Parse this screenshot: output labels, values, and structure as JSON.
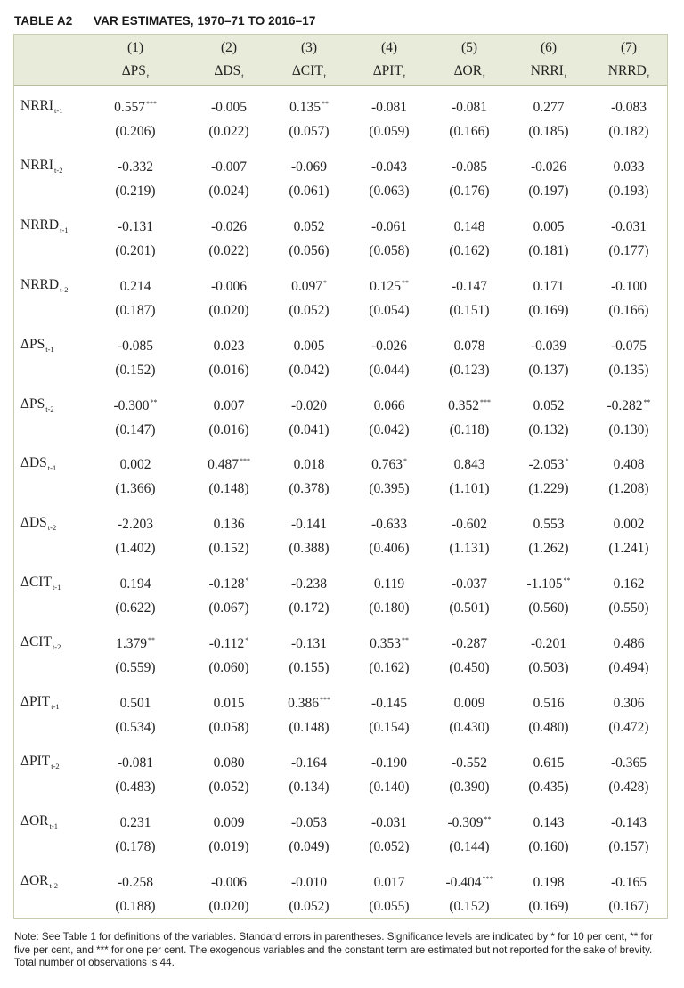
{
  "title": {
    "label": "TABLE A2",
    "text": "VAR ESTIMATES, 1970–71 TO 2016–17"
  },
  "columns": [
    {
      "num": "(1)",
      "name": "ΔPS",
      "sub": "t"
    },
    {
      "num": "(2)",
      "name": "ΔDS",
      "sub": "t"
    },
    {
      "num": "(3)",
      "name": "ΔCIT",
      "sub": "t"
    },
    {
      "num": "(4)",
      "name": "ΔPIT",
      "sub": "t"
    },
    {
      "num": "(5)",
      "name": "ΔOR",
      "sub": "t"
    },
    {
      "num": "(6)",
      "name": "NRRI",
      "sub": "t"
    },
    {
      "num": "(7)",
      "name": "NRRD",
      "sub": "t"
    }
  ],
  "rows": [
    {
      "name": "NRRI",
      "sub": "t-1",
      "est": [
        [
          "0.557",
          "***"
        ],
        [
          "-0.005",
          ""
        ],
        [
          "0.135",
          "**"
        ],
        [
          "-0.081",
          ""
        ],
        [
          "-0.081",
          ""
        ],
        [
          "0.277",
          ""
        ],
        [
          "-0.083",
          ""
        ]
      ],
      "se": [
        "(0.206)",
        "(0.022)",
        "(0.057)",
        "(0.059)",
        "(0.166)",
        "(0.185)",
        "(0.182)"
      ]
    },
    {
      "name": "NRRI",
      "sub": "t-2",
      "est": [
        [
          "-0.332",
          ""
        ],
        [
          "-0.007",
          ""
        ],
        [
          "-0.069",
          ""
        ],
        [
          "-0.043",
          ""
        ],
        [
          "-0.085",
          ""
        ],
        [
          "-0.026",
          ""
        ],
        [
          "0.033",
          ""
        ]
      ],
      "se": [
        "(0.219)",
        "(0.024)",
        "(0.061)",
        "(0.063)",
        "(0.176)",
        "(0.197)",
        "(0.193)"
      ]
    },
    {
      "name": "NRRD",
      "sub": "t-1",
      "est": [
        [
          "-0.131",
          ""
        ],
        [
          "-0.026",
          ""
        ],
        [
          "0.052",
          ""
        ],
        [
          "-0.061",
          ""
        ],
        [
          "0.148",
          ""
        ],
        [
          "0.005",
          ""
        ],
        [
          "-0.031",
          ""
        ]
      ],
      "se": [
        "(0.201)",
        "(0.022)",
        "(0.056)",
        "(0.058)",
        "(0.162)",
        "(0.181)",
        "(0.177)"
      ]
    },
    {
      "name": "NRRD",
      "sub": "t-2",
      "est": [
        [
          "0.214",
          ""
        ],
        [
          "-0.006",
          ""
        ],
        [
          "0.097",
          "*"
        ],
        [
          "0.125",
          "**"
        ],
        [
          "-0.147",
          ""
        ],
        [
          "0.171",
          ""
        ],
        [
          "-0.100",
          ""
        ]
      ],
      "se": [
        "(0.187)",
        "(0.020)",
        "(0.052)",
        "(0.054)",
        "(0.151)",
        "(0.169)",
        "(0.166)"
      ]
    },
    {
      "name": "ΔPS",
      "sub": "t-1",
      "est": [
        [
          "-0.085",
          ""
        ],
        [
          "0.023",
          ""
        ],
        [
          "0.005",
          ""
        ],
        [
          "-0.026",
          ""
        ],
        [
          "0.078",
          ""
        ],
        [
          "-0.039",
          ""
        ],
        [
          "-0.075",
          ""
        ]
      ],
      "se": [
        "(0.152)",
        "(0.016)",
        "(0.042)",
        "(0.044)",
        "(0.123)",
        "(0.137)",
        "(0.135)"
      ]
    },
    {
      "name": "ΔPS",
      "sub": "t-2",
      "est": [
        [
          "-0.300",
          "**"
        ],
        [
          "0.007",
          ""
        ],
        [
          "-0.020",
          ""
        ],
        [
          "0.066",
          ""
        ],
        [
          "0.352",
          "***"
        ],
        [
          "0.052",
          ""
        ],
        [
          "-0.282",
          "**"
        ]
      ],
      "se": [
        "(0.147)",
        "(0.016)",
        "(0.041)",
        "(0.042)",
        "(0.118)",
        "(0.132)",
        "(0.130)"
      ]
    },
    {
      "name": "ΔDS",
      "sub": "t-1",
      "est": [
        [
          "0.002",
          ""
        ],
        [
          "0.487",
          "***"
        ],
        [
          "0.018",
          ""
        ],
        [
          "0.763",
          "*"
        ],
        [
          "0.843",
          ""
        ],
        [
          "-2.053",
          "*"
        ],
        [
          "0.408",
          ""
        ]
      ],
      "se": [
        "(1.366)",
        "(0.148)",
        "(0.378)",
        "(0.395)",
        "(1.101)",
        "(1.229)",
        "(1.208)"
      ]
    },
    {
      "name": "ΔDS",
      "sub": "t-2",
      "est": [
        [
          "-2.203",
          ""
        ],
        [
          "0.136",
          ""
        ],
        [
          "-0.141",
          ""
        ],
        [
          "-0.633",
          ""
        ],
        [
          "-0.602",
          ""
        ],
        [
          "0.553",
          ""
        ],
        [
          "0.002",
          ""
        ]
      ],
      "se": [
        "(1.402)",
        "(0.152)",
        "(0.388)",
        "(0.406)",
        "(1.131)",
        "(1.262)",
        "(1.241)"
      ]
    },
    {
      "name": "ΔCIT",
      "sub": "t-1",
      "est": [
        [
          "0.194",
          ""
        ],
        [
          "-0.128",
          "*"
        ],
        [
          "-0.238",
          ""
        ],
        [
          "0.119",
          ""
        ],
        [
          "-0.037",
          ""
        ],
        [
          "-1.105",
          "**"
        ],
        [
          "0.162",
          ""
        ]
      ],
      "se": [
        "(0.622)",
        "(0.067)",
        "(0.172)",
        "(0.180)",
        "(0.501)",
        "(0.560)",
        "(0.550)"
      ]
    },
    {
      "name": "ΔCIT",
      "sub": "t-2",
      "est": [
        [
          "1.379",
          "**"
        ],
        [
          "-0.112",
          "*"
        ],
        [
          "-0.131",
          ""
        ],
        [
          "0.353",
          "**"
        ],
        [
          "-0.287",
          ""
        ],
        [
          "-0.201",
          ""
        ],
        [
          "0.486",
          ""
        ]
      ],
      "se": [
        "(0.559)",
        "(0.060)",
        "(0.155)",
        "(0.162)",
        "(0.450)",
        "(0.503)",
        "(0.494)"
      ]
    },
    {
      "name": "ΔPIT",
      "sub": "t-1",
      "est": [
        [
          "0.501",
          ""
        ],
        [
          "0.015",
          ""
        ],
        [
          "0.386",
          "***"
        ],
        [
          "-0.145",
          ""
        ],
        [
          "0.009",
          ""
        ],
        [
          "0.516",
          ""
        ],
        [
          "0.306",
          ""
        ]
      ],
      "se": [
        "(0.534)",
        "(0.058)",
        "(0.148)",
        "(0.154)",
        "(0.430)",
        "(0.480)",
        "(0.472)"
      ]
    },
    {
      "name": "ΔPIT",
      "sub": "t-2",
      "est": [
        [
          "-0.081",
          ""
        ],
        [
          "0.080",
          ""
        ],
        [
          "-0.164",
          ""
        ],
        [
          "-0.190",
          ""
        ],
        [
          "-0.552",
          ""
        ],
        [
          "0.615",
          ""
        ],
        [
          "-0.365",
          ""
        ]
      ],
      "se": [
        "(0.483)",
        "(0.052)",
        "(0.134)",
        "(0.140)",
        "(0.390)",
        "(0.435)",
        "(0.428)"
      ]
    },
    {
      "name": "ΔOR",
      "sub": "t-1",
      "est": [
        [
          "0.231",
          ""
        ],
        [
          "0.009",
          ""
        ],
        [
          "-0.053",
          ""
        ],
        [
          "-0.031",
          ""
        ],
        [
          "-0.309",
          "**"
        ],
        [
          "0.143",
          ""
        ],
        [
          "-0.143",
          ""
        ]
      ],
      "se": [
        "(0.178)",
        "(0.019)",
        "(0.049)",
        "(0.052)",
        "(0.144)",
        "(0.160)",
        "(0.157)"
      ]
    },
    {
      "name": "ΔOR",
      "sub": "t-2",
      "est": [
        [
          "-0.258",
          ""
        ],
        [
          "-0.006",
          ""
        ],
        [
          "-0.010",
          ""
        ],
        [
          "0.017",
          ""
        ],
        [
          "-0.404",
          "***"
        ],
        [
          "0.198",
          ""
        ],
        [
          "-0.165",
          ""
        ]
      ],
      "se": [
        "(0.188)",
        "(0.020)",
        "(0.052)",
        "(0.055)",
        "(0.152)",
        "(0.169)",
        "(0.167)"
      ]
    }
  ],
  "note": "Note: See Table 1 for definitions of the variables. Standard errors in parentheses. Significance levels are indicated by * for 10 per cent, ** for five per cent, and *** for one per cent. The exogenous variables and the constant term are estimated but not reported for the sake of brevity. Total number of observations is 44."
}
